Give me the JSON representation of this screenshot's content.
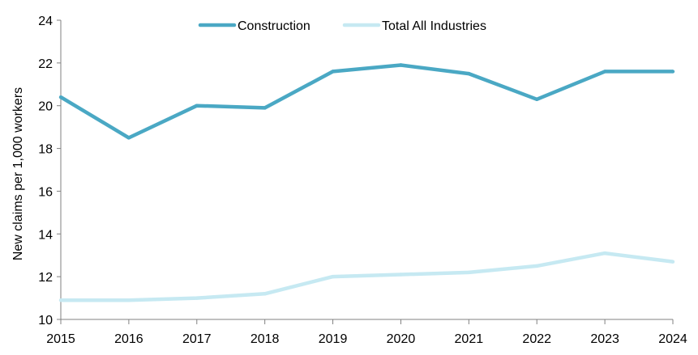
{
  "chart_data": {
    "type": "line",
    "title": "",
    "xlabel": "",
    "ylabel": "New claims per 1,000 workers",
    "x": [
      2015,
      2016,
      2017,
      2018,
      2019,
      2020,
      2021,
      2022,
      2023,
      2024
    ],
    "x_tick_labels": [
      "2015",
      "2016",
      "2017",
      "2018",
      "2019",
      "2020",
      "2021",
      "2022",
      "2023",
      "2024"
    ],
    "ylim": [
      10,
      24
    ],
    "y_ticks": [
      10,
      12,
      14,
      16,
      18,
      20,
      22,
      24
    ],
    "y_tick_labels": [
      "10",
      "12",
      "14",
      "16",
      "18",
      "20",
      "22",
      "24"
    ],
    "grid": false,
    "legend_position": "top-center",
    "series": [
      {
        "name": "Construction",
        "color": "#4aa8c4",
        "values": [
          20.4,
          18.5,
          20.0,
          19.9,
          21.6,
          21.9,
          21.5,
          20.3,
          21.6,
          21.6
        ]
      },
      {
        "name": "Total All Industries",
        "color": "#c6e9f2",
        "values": [
          10.9,
          10.9,
          11.0,
          11.2,
          12.0,
          12.1,
          12.2,
          12.5,
          13.1,
          12.7
        ]
      }
    ]
  }
}
